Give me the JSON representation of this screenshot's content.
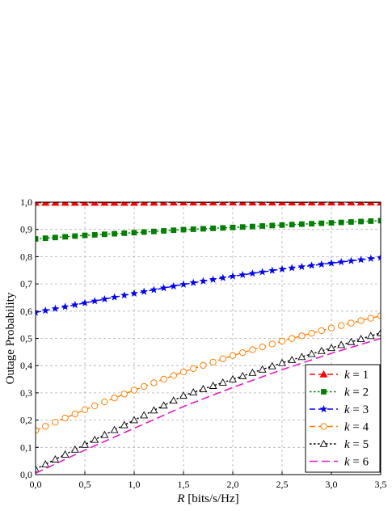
{
  "chart_data": {
    "type": "line",
    "xlabel_var": "R",
    "xlabel_unit": " [bits/s/Hz]",
    "ylabel": "Outage Probability",
    "xlim": [
      0,
      3.5
    ],
    "ylim": [
      0,
      1.0
    ],
    "xticks": [
      0,
      0.5,
      1.0,
      1.5,
      2.0,
      2.5,
      3.0,
      3.5
    ],
    "xtick_labels": [
      "0,0",
      "0,5",
      "1,0",
      "1,5",
      "2,0",
      "2,5",
      "3,0",
      "3,5"
    ],
    "yticks": [
      0,
      0.1,
      0.2,
      0.3,
      0.4,
      0.5,
      0.6,
      0.7,
      0.8,
      0.9,
      1.0
    ],
    "ytick_labels": [
      "0,0",
      "0,1",
      "0,2",
      "0,3",
      "0,4",
      "0,5",
      "0,6",
      "0,7",
      "0,8",
      "0,9",
      "1,0"
    ],
    "grid": true,
    "legend_position": "bottom-right",
    "x": [
      0.0,
      0.5,
      1.0,
      1.5,
      2.0,
      2.5,
      3.0,
      3.5
    ],
    "series": [
      {
        "name": "k = 1",
        "legend_var": "k",
        "legend_val": " = 1",
        "color": "#ff0000",
        "dash": "dash",
        "marker": "triangle-filled",
        "values": [
          0.998,
          0.998,
          0.998,
          0.999,
          0.999,
          0.999,
          0.999,
          0.999
        ]
      },
      {
        "name": "k = 2",
        "legend_var": "k",
        "legend_val": " = 2",
        "color": "#008000",
        "dash": "dot",
        "marker": "square-filled",
        "values": [
          0.865,
          0.878,
          0.888,
          0.899,
          0.907,
          0.916,
          0.924,
          0.932
        ]
      },
      {
        "name": "k = 3",
        "legend_var": "k",
        "legend_val": " = 3",
        "color": "#0000ff",
        "dash": "dash",
        "marker": "star-filled",
        "values": [
          0.595,
          0.63,
          0.665,
          0.698,
          0.728,
          0.754,
          0.776,
          0.797
        ]
      },
      {
        "name": "k = 4",
        "legend_var": "k",
        "legend_val": " = 4",
        "color": "#ff8000",
        "dash": "dash",
        "marker": "circle-open",
        "values": [
          0.162,
          0.238,
          0.31,
          0.377,
          0.437,
          0.49,
          0.538,
          0.583
        ]
      },
      {
        "name": "k = 5",
        "legend_var": "k",
        "legend_val": " = 5",
        "color": "#000000",
        "dash": "dot",
        "marker": "triangle-open",
        "values": [
          0.02,
          0.11,
          0.2,
          0.29,
          0.35,
          0.41,
          0.465,
          0.52
        ]
      },
      {
        "name": "k = 6",
        "legend_var": "k",
        "legend_val": " = 6",
        "color": "#e619c8",
        "dash": "longdash",
        "marker": "none",
        "values": [
          0.005,
          0.09,
          0.17,
          0.25,
          0.32,
          0.385,
          0.445,
          0.5
        ]
      }
    ]
  }
}
